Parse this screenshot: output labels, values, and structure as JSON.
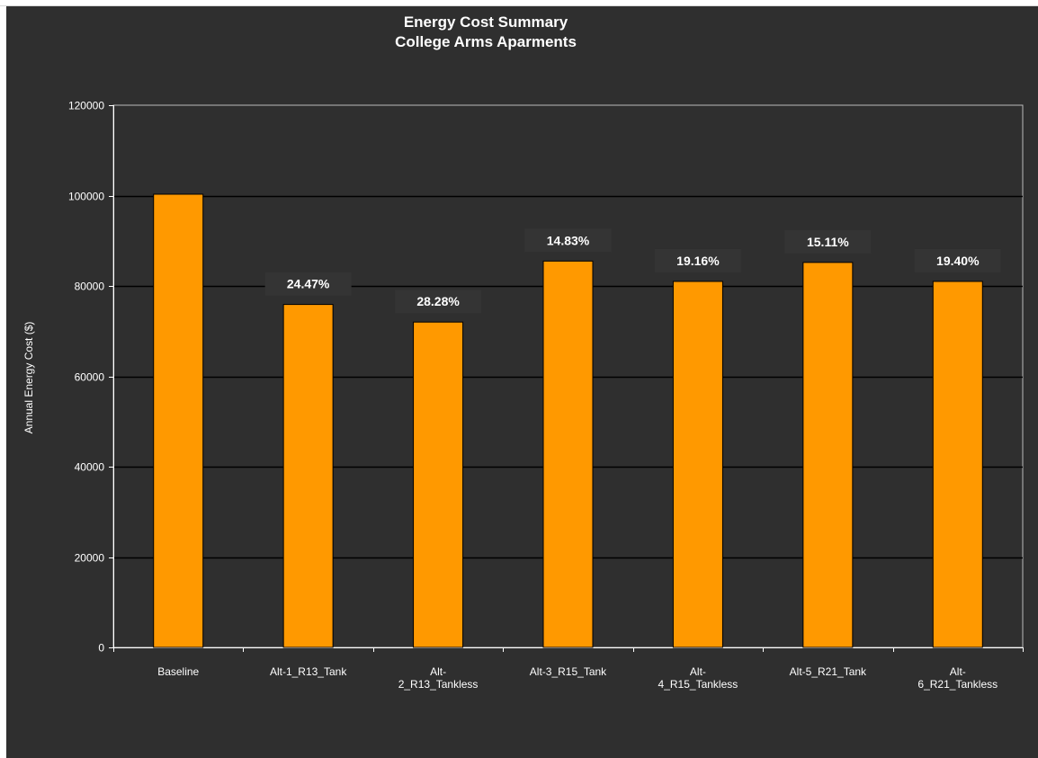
{
  "chart_data": {
    "type": "bar",
    "title": "Energy Cost Summary",
    "subtitle": "College Arms Aparments",
    "ylabel": "Annual Energy Cost ($)",
    "xlabel": "",
    "ylim": [
      0,
      120000
    ],
    "yticks": [
      0,
      20000,
      40000,
      60000,
      80000,
      100000,
      120000
    ],
    "categories": [
      [
        "Baseline"
      ],
      [
        "Alt-1_R13_Tank"
      ],
      [
        "Alt-",
        "2_R13_Tankless"
      ],
      [
        "Alt-3_R15_Tank"
      ],
      [
        "Alt-",
        "4_R15_Tankless"
      ],
      [
        "Alt-5_R21_Tank"
      ],
      [
        "Alt-",
        "6_R21_Tankless"
      ]
    ],
    "values": [
      100300,
      75900,
      72000,
      85500,
      81000,
      85200,
      81000
    ],
    "data_labels": [
      "",
      "24.47%",
      "28.28%",
      "14.83%",
      "19.16%",
      "15.11%",
      "19.40%"
    ],
    "bar_color": "#ff9900",
    "background_color": "#2f2f2f",
    "grid": true,
    "legend": "none"
  }
}
